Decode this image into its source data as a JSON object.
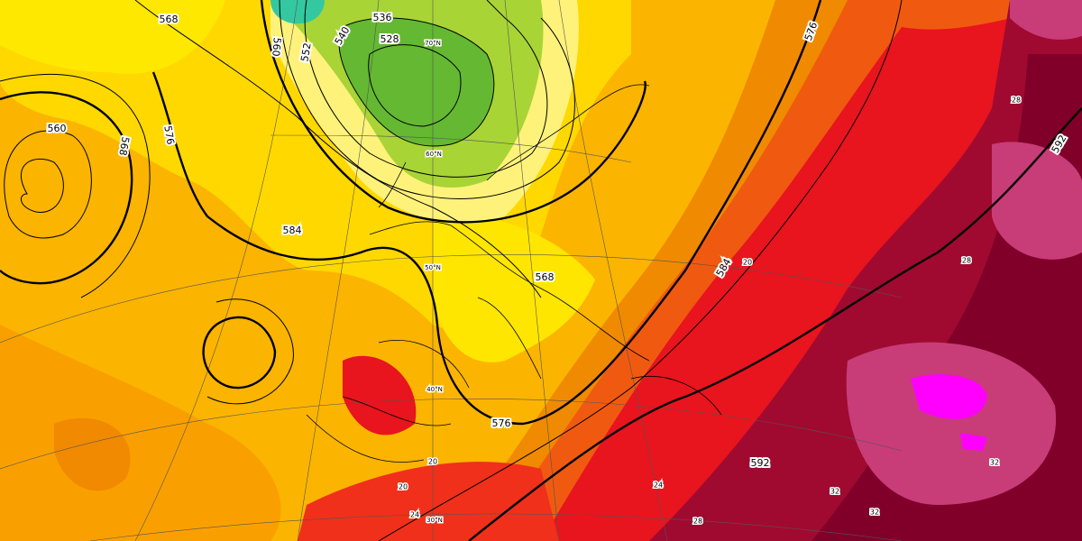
{
  "contour_labels": [
    "568",
    "560",
    "568",
    "576",
    "560",
    "552",
    "540",
    "536",
    "528",
    "584",
    "568",
    "576",
    "584",
    "576",
    "592",
    "592"
  ],
  "latitude_labels": [
    "70°N",
    "60°N",
    "50°N",
    "40°N",
    "30°N"
  ],
  "temperature_labels": [
    "20",
    "20",
    "20",
    "24",
    "28",
    "28",
    "32",
    "32",
    "32",
    "24",
    "28"
  ]
}
